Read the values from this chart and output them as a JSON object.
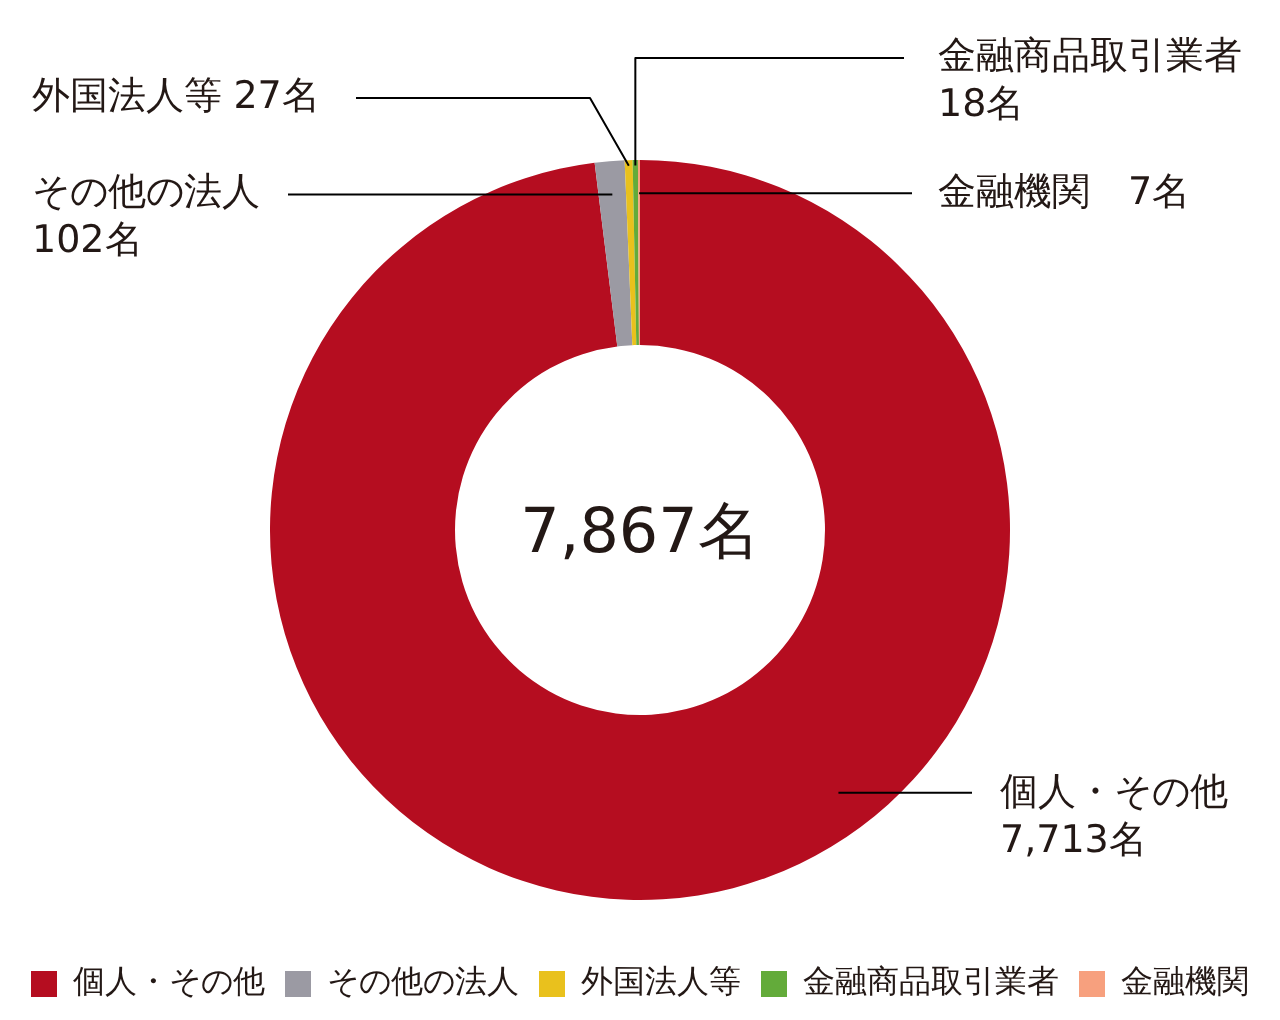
{
  "chart_data": {
    "type": "donut",
    "categories": [
      "個人・その他",
      "その他の法人",
      "外国法人等",
      "金融商品取引業者",
      "金融機関"
    ],
    "values": [
      7713,
      102,
      27,
      18,
      7
    ],
    "colors": [
      "#b50d20",
      "#9b9aa3",
      "#e9c11d",
      "#63ab3a",
      "#f7a07e"
    ],
    "value_labels": [
      "7,713名",
      "102名",
      "27名",
      "18名",
      "7名"
    ],
    "annotations": [
      "7,867名"
    ],
    "legend": "bottom"
  }
}
